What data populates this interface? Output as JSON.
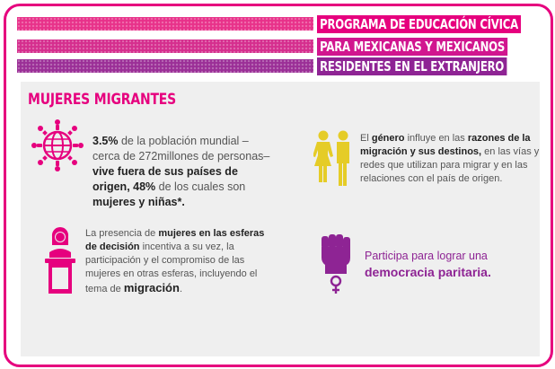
{
  "header": {
    "line1": "PROGRAMA DE EDUCACIÓN CÍVICA",
    "line2": "PARA MEXICANAS Y MEXICANOS",
    "line3": "RESIDENTES EN EL EXTRANJERO"
  },
  "section": {
    "title": "MUJERES MIGRANTES"
  },
  "block1": {
    "s1": "3.5%",
    "s2": " de la población mundial –cerca de 272millones de personas– ",
    "s3": "vive fuera de sus países de origen, 48%",
    "s4": " de los cuales son ",
    "s5": "mujeres y niñas*."
  },
  "block2": {
    "s1": "El ",
    "s2": "género",
    "s3": " influye en las ",
    "s4": "razones de la migración y sus destinos,",
    "s5": " en las vías y redes que utilizan para migrar y en las relaciones con el país de origen."
  },
  "block3": {
    "s1": "La presencia  de ",
    "s2": "mujeres en las esferas de decisión",
    "s3": " incentiva a su vez, la participación y el compromiso de las mujeres en otras esferas, incluyendo el tema de ",
    "s4": "migración",
    "s5": "."
  },
  "block4": {
    "s1": "Participa para lograr una ",
    "s2": "democracia paritaria."
  },
  "icons": [
    "globe-people-icon",
    "man-woman-icon",
    "woman-podium-icon",
    "raised-fist-venus-icon"
  ],
  "colors": {
    "magenta": "#e6007e",
    "pink": "#d1168f",
    "purple": "#8e2494",
    "yellow": "#e5cc27",
    "panel": "#efefef"
  }
}
